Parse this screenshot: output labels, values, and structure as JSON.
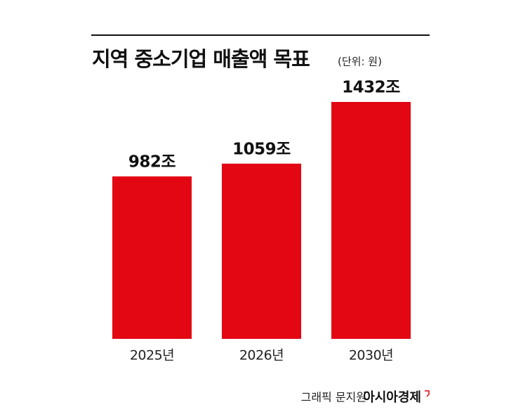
{
  "chart_data": {
    "type": "bar",
    "title": "지역 중소기업 매출액 목표",
    "subtitle": "(단위: 원)",
    "categories": [
      "2025년",
      "2026년",
      "2030년"
    ],
    "values": [
      982,
      1059,
      1432
    ],
    "value_labels": [
      "982조",
      "1059조",
      "1432조"
    ],
    "color": "#e30613",
    "source": "그래픽 문지원",
    "publisher": "아시아경제"
  }
}
